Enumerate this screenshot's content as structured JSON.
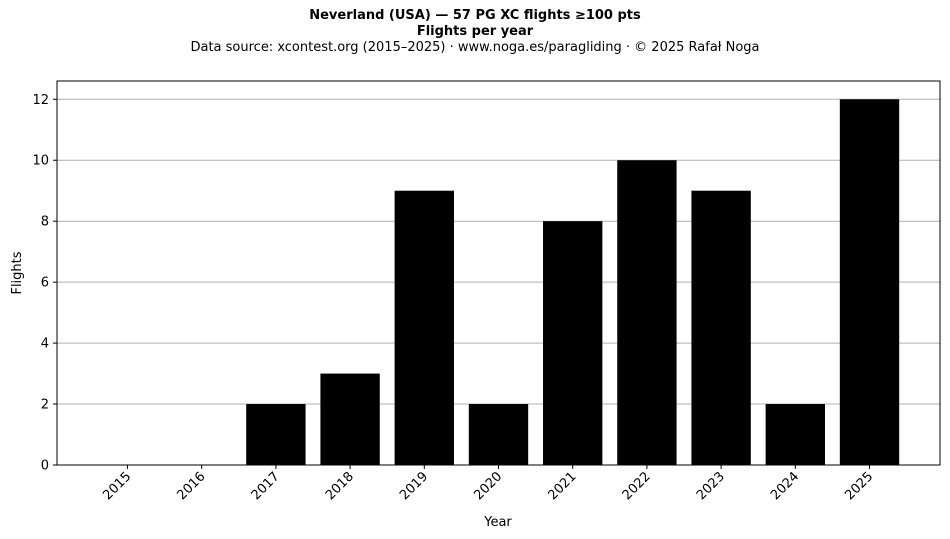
{
  "chart_data": {
    "type": "bar",
    "title": "Neverland (USA)  —  57 PG XC flights ≥100 pts",
    "subtitle": "Flights per year",
    "source_note": "Data source: xcontest.org (2015–2025)  ·  www.noga.es/paragliding  ·  © 2025 Rafał Noga",
    "xlabel": "Year",
    "ylabel": "Flights",
    "categories": [
      "2015",
      "2016",
      "2017",
      "2018",
      "2019",
      "2020",
      "2021",
      "2022",
      "2023",
      "2024",
      "2025"
    ],
    "values": [
      0,
      0,
      2,
      3,
      9,
      2,
      8,
      10,
      9,
      2,
      12
    ],
    "ylim": [
      0,
      12.6
    ],
    "yticks": [
      0,
      2,
      4,
      6,
      8,
      10,
      12
    ],
    "grid": "y",
    "bar_color": "#000000",
    "grid_color": "#b0b0b0"
  }
}
